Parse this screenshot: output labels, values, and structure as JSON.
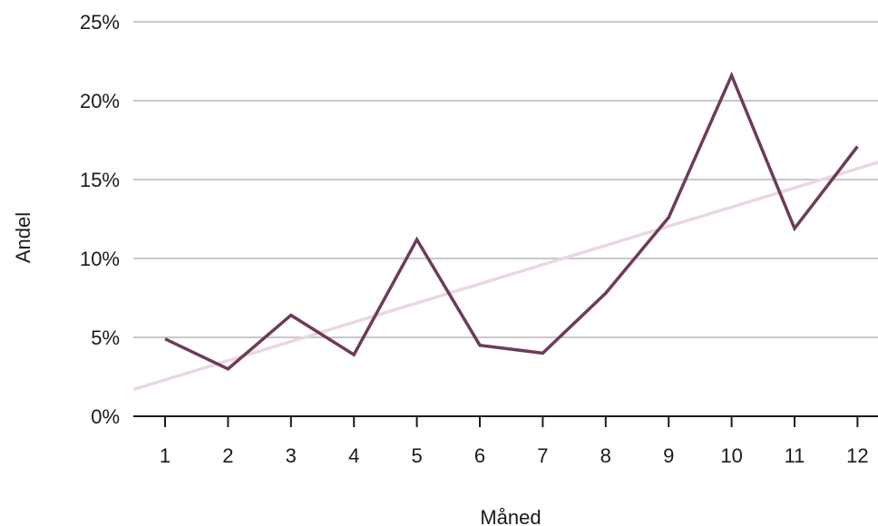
{
  "chart_data": {
    "type": "line",
    "title": "",
    "xlabel": "Måned",
    "ylabel": "Andel",
    "categories": [
      "1",
      "2",
      "3",
      "4",
      "5",
      "6",
      "7",
      "8",
      "9",
      "10",
      "11",
      "12"
    ],
    "series": [
      {
        "values": [
          4.9,
          3.0,
          6.4,
          3.9,
          11.2,
          4.5,
          4.0,
          7.8,
          12.6,
          21.6,
          11.9,
          17.1
        ]
      }
    ],
    "trendline": {
      "x_range": [
        0.5,
        12.5
      ],
      "y_range": [
        1.7,
        16.3
      ]
    },
    "yticks": [
      0,
      5,
      10,
      15,
      20,
      25
    ],
    "ytick_suffix": "%",
    "ylim": [
      0,
      25
    ],
    "grid": "horizontal",
    "colors": {
      "series": "#6e3b5a",
      "trendline": "#ecd7de",
      "grid": "#c8c8c8",
      "axis": "#1a1a1a"
    }
  }
}
